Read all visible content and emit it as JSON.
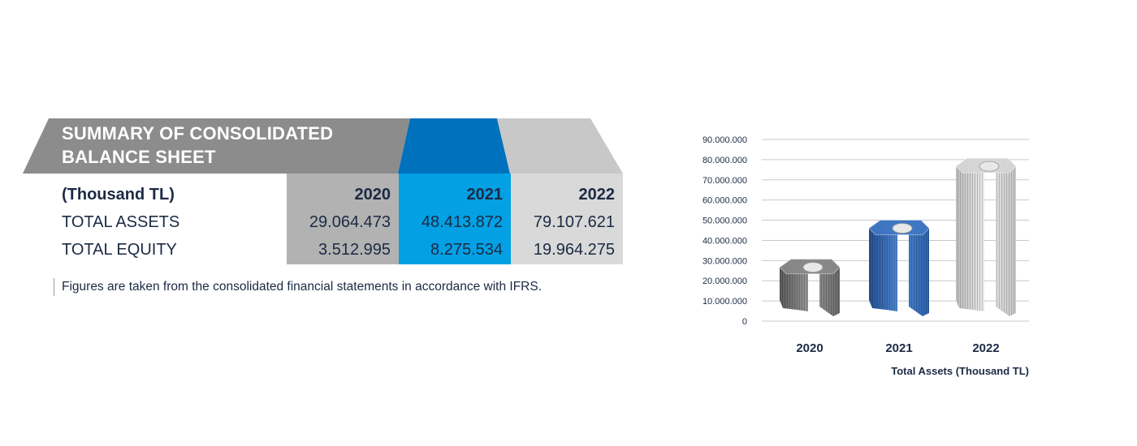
{
  "summary": {
    "title_line1": "SUMMARY OF CONSOLIDATED",
    "title_line2": "BALANCE SHEET",
    "unit_label": "(Thousand TL)",
    "years": [
      "2020",
      "2021",
      "2022"
    ],
    "rows": [
      {
        "label": "TOTAL ASSETS",
        "values": [
          "29.064.473",
          "48.413.872",
          "79.107.621"
        ]
      },
      {
        "label": "TOTAL EQUITY",
        "values": [
          "3.512.995",
          "8.275.534",
          "19.964.275"
        ]
      }
    ],
    "footnote": "Figures are taken from the consolidated financial statements in accordance with IFRS.",
    "colors": {
      "banner_dark": "#8c8c8c",
      "banner_2021": "#0071bc",
      "banner_2022": "#c8c8c8",
      "col_2020": "#b2b2b2",
      "col_2021": "#03a0e4",
      "col_2022": "#d9d9d9"
    }
  },
  "chart_data": {
    "type": "bar",
    "categories": [
      "2020",
      "2021",
      "2022"
    ],
    "values": [
      29064473,
      48413872,
      79107621
    ],
    "xlabel": "Total Assets (Thousand TL)",
    "ylabel": "",
    "ylim": [
      0,
      90000000
    ],
    "yticks": [
      "90.000.000",
      "80.000.000",
      "70.000.000",
      "60.000.000",
      "50.000.000",
      "40.000.000",
      "30.000.000",
      "20.000.000",
      "10.000.000",
      "0"
    ],
    "grid": true,
    "bar_colors": [
      "#8a8a8a",
      "#3f78c4",
      "#d6d6d6"
    ]
  }
}
